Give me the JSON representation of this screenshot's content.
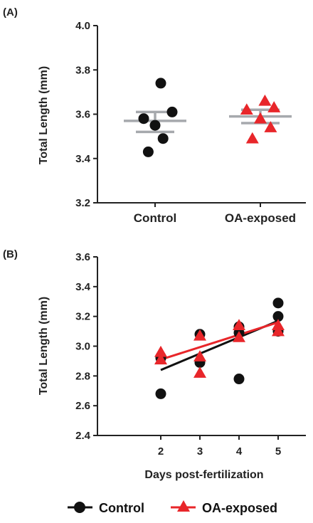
{
  "chart_data": [
    {
      "panel_label": "(A)",
      "type": "scatter",
      "ylabel": "Total Length (mm)",
      "ylim": [
        3.2,
        4.0
      ],
      "yticks": [
        "3.2",
        "3.4",
        "3.6",
        "3.8",
        "4.0"
      ],
      "categories": [
        "Control",
        "OA-exposed"
      ],
      "series": [
        {
          "name": "Control",
          "marker": "circle",
          "color": "#111111",
          "points": [
            {
              "offset": 0.5,
              "y": 3.74
            },
            {
              "offset": -1.0,
              "y": 3.58
            },
            {
              "offset": 1.5,
              "y": 3.61
            },
            {
              "offset": 0.0,
              "y": 3.55
            },
            {
              "offset": 0.7,
              "y": 3.49
            },
            {
              "offset": -0.6,
              "y": 3.43
            }
          ],
          "mean": 3.57,
          "sem_upper": 3.61,
          "sem_lower": 3.52
        },
        {
          "name": "OA-exposed",
          "marker": "triangle",
          "color": "#e8262a",
          "points": [
            {
              "offset": 0.4,
              "y": 3.66
            },
            {
              "offset": -1.2,
              "y": 3.62
            },
            {
              "offset": 1.2,
              "y": 3.63
            },
            {
              "offset": 0.0,
              "y": 3.58
            },
            {
              "offset": 0.9,
              "y": 3.54
            },
            {
              "offset": -0.7,
              "y": 3.49
            }
          ],
          "mean": 3.59,
          "sem_upper": 3.62,
          "sem_lower": 3.56
        }
      ],
      "summary_color": "#a6a9ad"
    },
    {
      "panel_label": "(B)",
      "type": "scatter",
      "xlabel": "Days post-fertilization",
      "ylabel": "Total Length (mm)",
      "xlim": [
        1,
        5.5
      ],
      "ylim": [
        2.4,
        3.6
      ],
      "xticks": [
        "2",
        "3",
        "4",
        "5"
      ],
      "yticks": [
        "2.4",
        "2.6",
        "2.8",
        "3.0",
        "3.2",
        "3.4",
        "3.6"
      ],
      "series": [
        {
          "name": "Control",
          "marker": "circle",
          "color": "#111111",
          "points": [
            {
              "x": 2,
              "y": 2.93
            },
            {
              "x": 2,
              "y": 2.92
            },
            {
              "x": 2,
              "y": 2.68
            },
            {
              "x": 3,
              "y": 3.08
            },
            {
              "x": 3,
              "y": 2.89
            },
            {
              "x": 4,
              "y": 3.13
            },
            {
              "x": 4,
              "y": 3.09
            },
            {
              "x": 4,
              "y": 2.78
            },
            {
              "x": 5,
              "y": 3.29
            },
            {
              "x": 5,
              "y": 3.2
            },
            {
              "x": 5,
              "y": 3.1
            }
          ],
          "fit": {
            "x": [
              2,
              5
            ],
            "y": [
              2.84,
              3.17
            ]
          }
        },
        {
          "name": "OA-exposed",
          "marker": "triangle",
          "color": "#e8262a",
          "points": [
            {
              "x": 2,
              "y": 2.96
            },
            {
              "x": 2,
              "y": 2.91
            },
            {
              "x": 3,
              "y": 3.07
            },
            {
              "x": 3,
              "y": 2.93
            },
            {
              "x": 3,
              "y": 2.82
            },
            {
              "x": 4,
              "y": 3.14
            },
            {
              "x": 4,
              "y": 3.06
            },
            {
              "x": 5,
              "y": 3.14
            },
            {
              "x": 5,
              "y": 3.1
            }
          ],
          "fit": {
            "x": [
              2,
              5
            ],
            "y": [
              2.91,
              3.16
            ]
          }
        }
      ]
    }
  ],
  "legend": [
    {
      "label": "Control",
      "marker": "circle",
      "color": "#111111"
    },
    {
      "label": "OA-exposed",
      "marker": "triangle",
      "color": "#e8262a"
    }
  ]
}
